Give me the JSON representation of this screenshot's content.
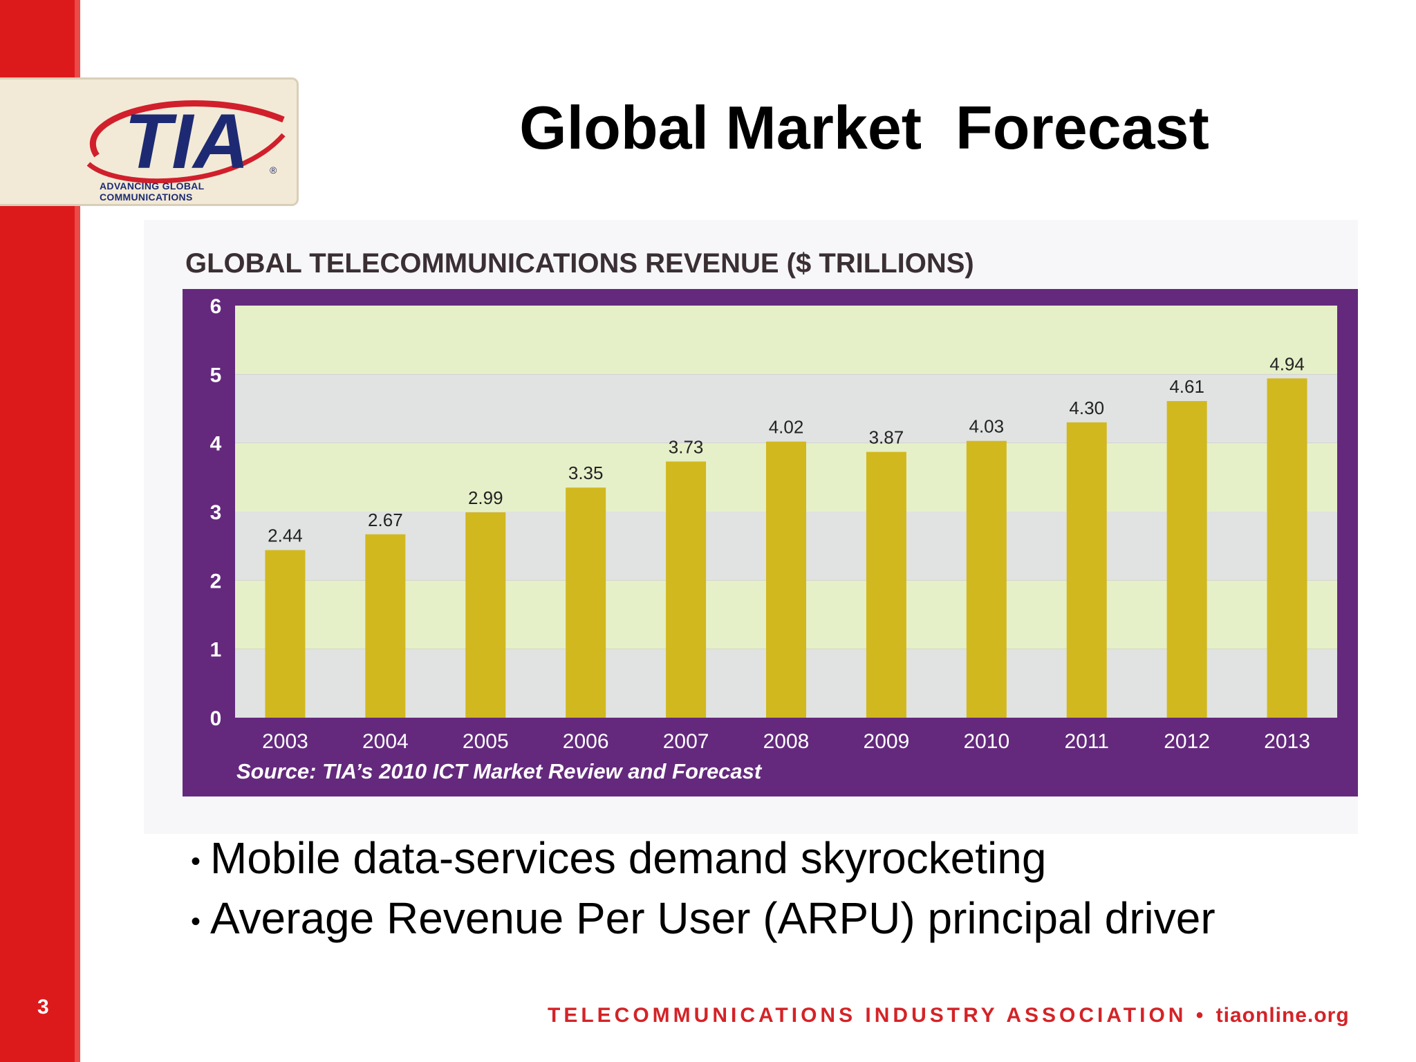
{
  "slide": {
    "title": "Global Market  Forecast",
    "page_number": "3",
    "bullets": [
      "Mobile data-services demand skyrocketing",
      "Average Revenue Per User (ARPU) principal driver"
    ],
    "footer": {
      "org": "TELECOMMUNICATIONS INDUSTRY ASSOCIATION",
      "separator": "•",
      "url": "tiaonline.org"
    }
  },
  "logo": {
    "text": "TIA",
    "registered": "®",
    "tagline": "ADVANCING GLOBAL COMMUNICATIONS"
  },
  "colors": {
    "brand_red": "#dc1a1c",
    "chart_frame": "#64297d",
    "bar": "#d1b81f",
    "band_light": "#e6f0c8",
    "band_grey": "#e0e3e1"
  },
  "chart_data": {
    "type": "bar",
    "title": "GLOBAL TELECOMMUNICATIONS REVENUE ($ TRILLIONS)",
    "xlabel": "",
    "ylabel": "",
    "categories": [
      "2003",
      "2004",
      "2005",
      "2006",
      "2007",
      "2008",
      "2009",
      "2010",
      "2011",
      "2012",
      "2013"
    ],
    "values": [
      2.44,
      2.67,
      2.99,
      3.35,
      3.73,
      4.02,
      3.87,
      4.03,
      4.3,
      4.61,
      4.94
    ],
    "value_labels": [
      "2.44",
      "2.67",
      "2.99",
      "3.35",
      "3.73",
      "4.02",
      "3.87",
      "4.03",
      "4.30",
      "4.61",
      "4.94"
    ],
    "ylim": [
      0,
      6
    ],
    "yticks": [
      "0",
      "1",
      "2",
      "3",
      "4",
      "5",
      "6"
    ],
    "source": "Source: TIA’s 2010 ICT Market Review and Forecast",
    "grid": false,
    "legend": "none"
  }
}
